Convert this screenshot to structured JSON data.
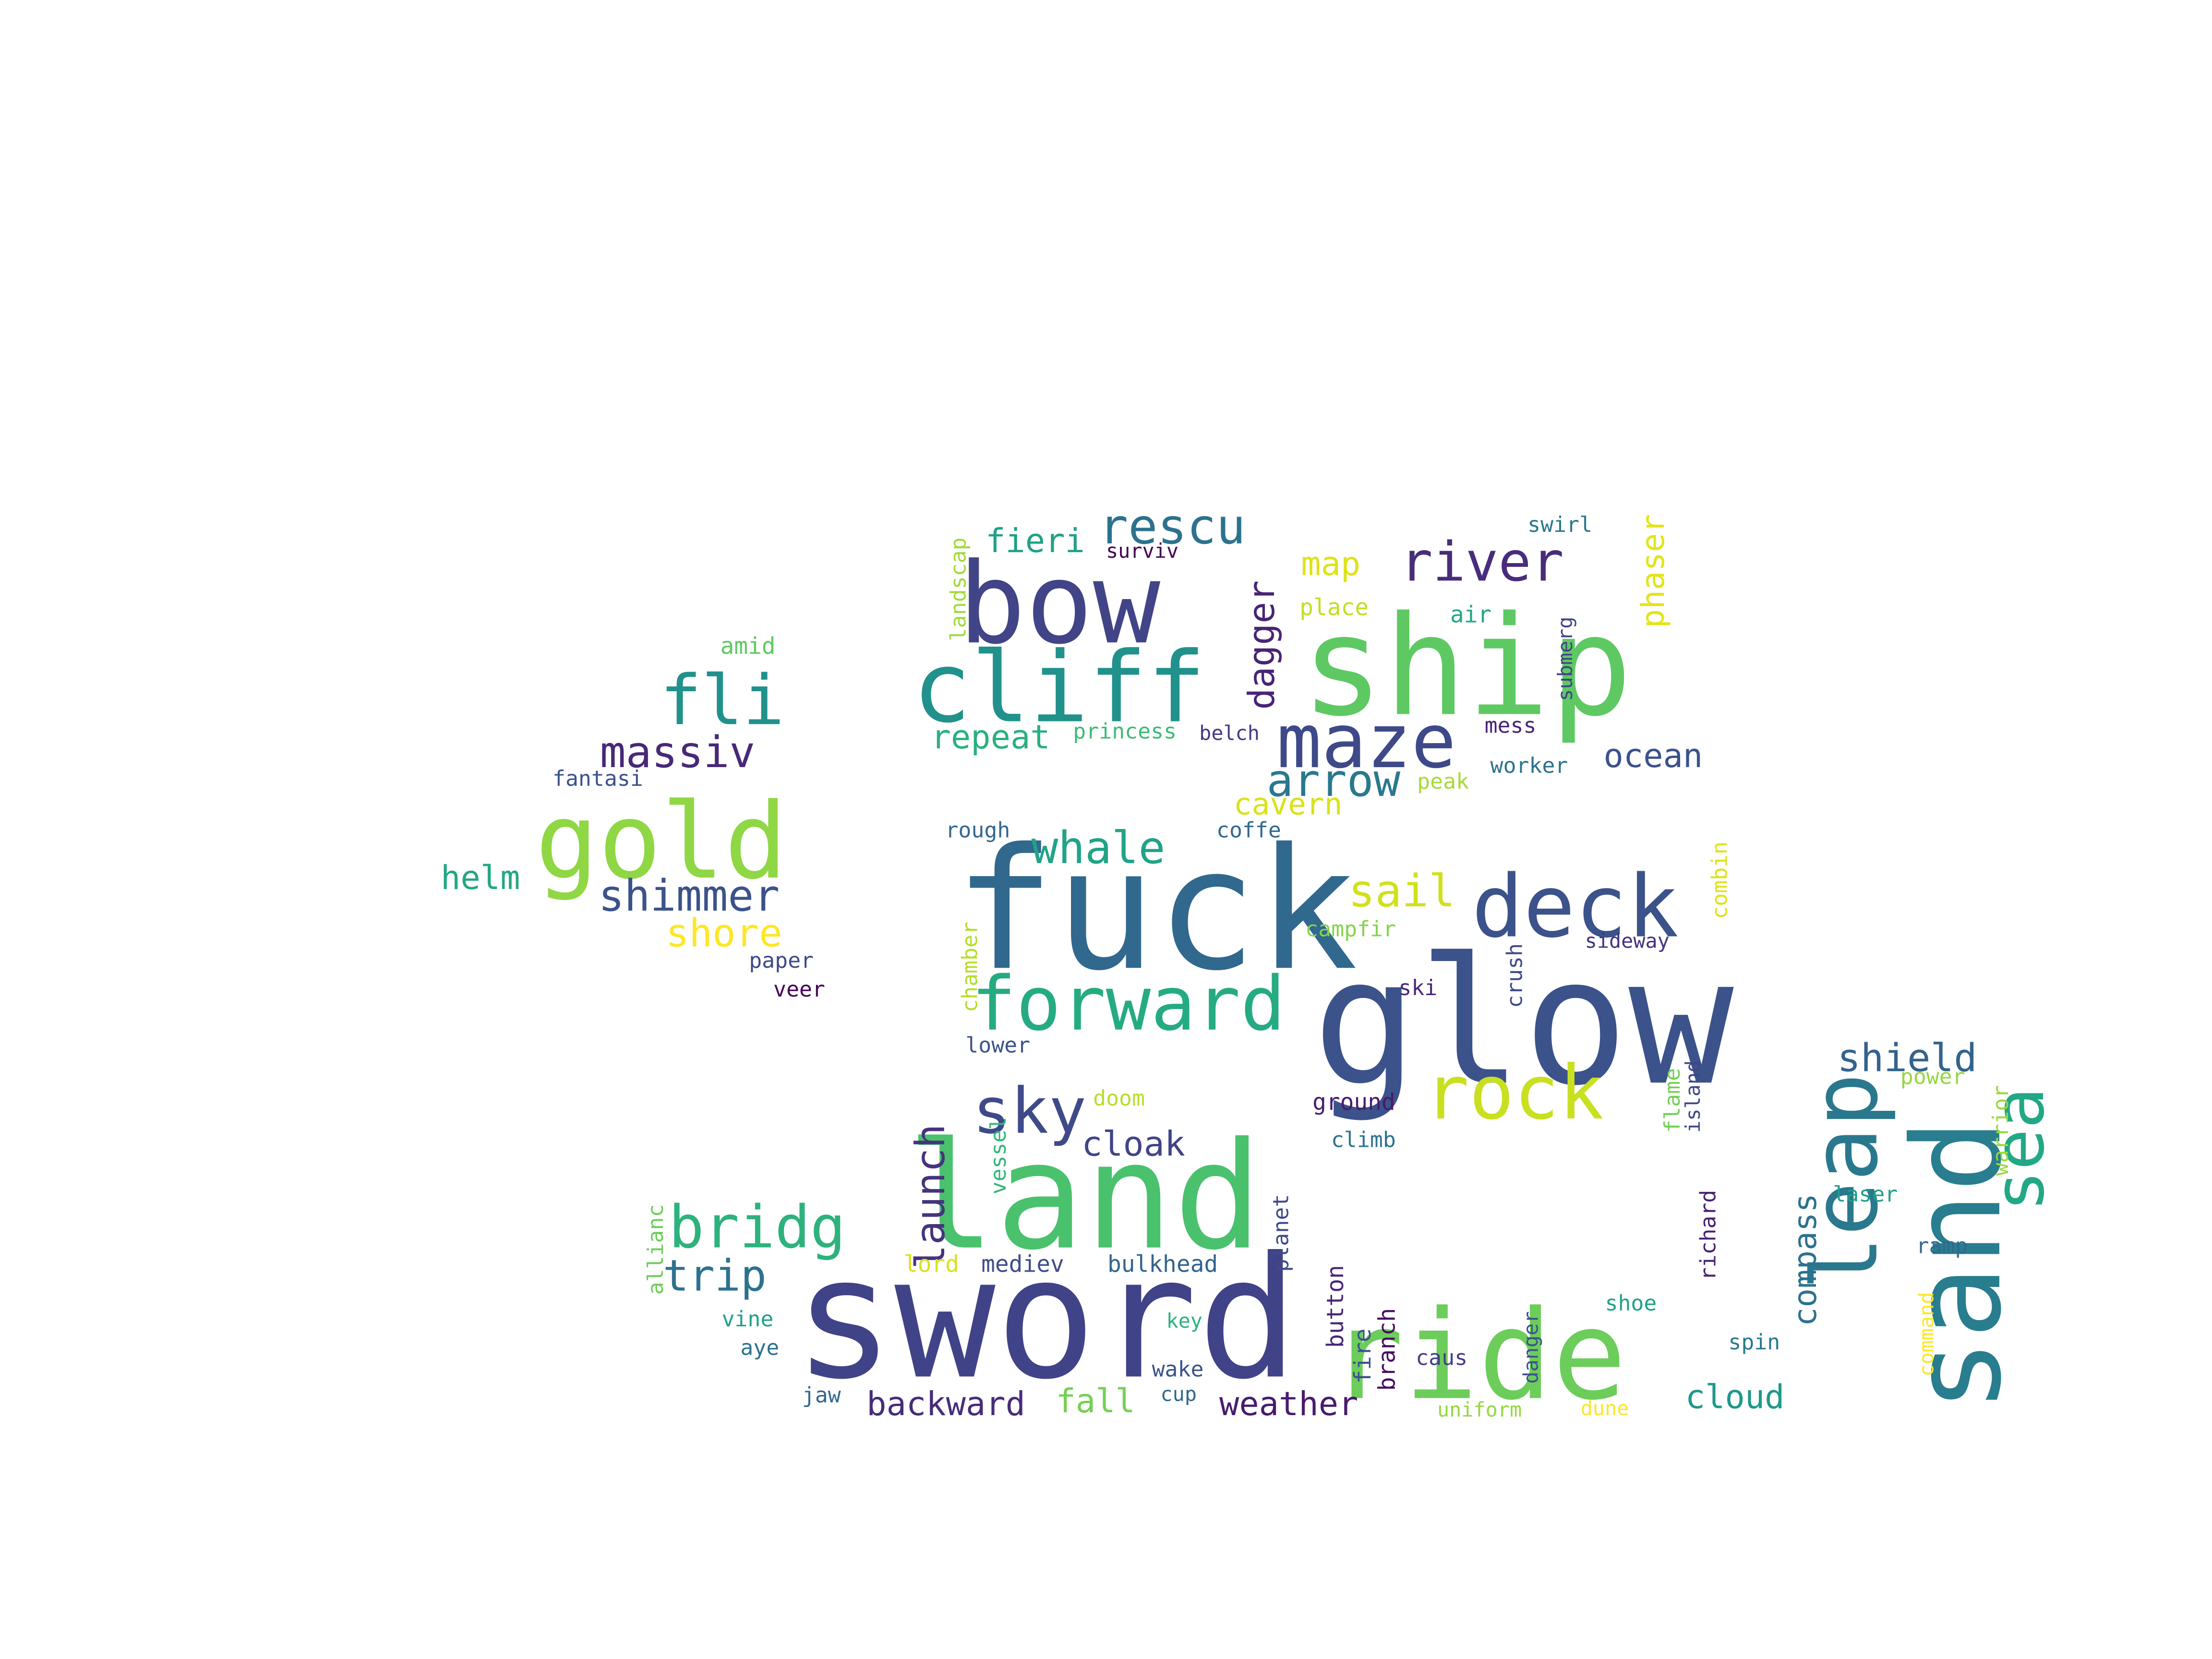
{
  "words": [
    {
      "text": "fuck",
      "color": "#31688e"
    },
    {
      "text": "glow",
      "color": "#3b528b"
    },
    {
      "text": "sword",
      "color": "#404387"
    },
    {
      "text": "land",
      "color": "#4ac16d"
    },
    {
      "text": "ship",
      "color": "#5ec962"
    },
    {
      "text": "bow",
      "color": "#414487"
    },
    {
      "text": "sand",
      "color": "#287d8e"
    },
    {
      "text": "ride",
      "color": "#6ccd5a"
    },
    {
      "text": "gold",
      "color": "#8fd744"
    },
    {
      "text": "cliff",
      "color": "#21918c"
    },
    {
      "text": "deck",
      "color": "#3b528b"
    },
    {
      "text": "forward",
      "color": "#25ab82"
    },
    {
      "text": "maze",
      "color": "#3e4989"
    },
    {
      "text": "leap",
      "color": "#2a788e"
    },
    {
      "text": "rock",
      "color": "#c8e020"
    },
    {
      "text": "sky",
      "color": "#3e4a89"
    },
    {
      "text": "sea",
      "color": "#22a884"
    },
    {
      "text": "bridg",
      "color": "#2db27d"
    },
    {
      "text": "river",
      "color": "#472d7b"
    },
    {
      "text": "fli",
      "color": "#21918c"
    },
    {
      "text": "rescu",
      "color": "#2c728e"
    },
    {
      "text": "whale",
      "color": "#20a386"
    },
    {
      "text": "arrow",
      "color": "#2a788e"
    },
    {
      "text": "massiv",
      "color": "#482878"
    },
    {
      "text": "shimmer",
      "color": "#3b528b"
    },
    {
      "text": "trip",
      "color": "#2c728e"
    },
    {
      "text": "shield",
      "color": "#33638d"
    },
    {
      "text": "sail",
      "color": "#d0e11c"
    },
    {
      "text": "launch",
      "color": "#46337e"
    },
    {
      "text": "fieri",
      "color": "#1fa187"
    },
    {
      "text": "shore",
      "color": "#fde725"
    },
    {
      "text": "cloak",
      "color": "#414487"
    },
    {
      "text": "backward",
      "color": "#472c7a"
    },
    {
      "text": "weather",
      "color": "#481b6d"
    },
    {
      "text": "cloud",
      "color": "#1f988b"
    },
    {
      "text": "ocean",
      "color": "#3b528b"
    },
    {
      "text": "repeat",
      "color": "#2ab07f"
    },
    {
      "text": "dagger",
      "color": "#482475"
    },
    {
      "text": "phaser",
      "color": "#e2e418"
    },
    {
      "text": "helm",
      "color": "#22a884"
    },
    {
      "text": "map",
      "color": "#dde318"
    },
    {
      "text": "fall",
      "color": "#75d054"
    },
    {
      "text": "cavern",
      "color": "#d8e219"
    },
    {
      "text": "compass",
      "color": "#2c728e"
    },
    {
      "text": "lord",
      "color": "#d8e219"
    },
    {
      "text": "mediev",
      "color": "#3e4c8a"
    },
    {
      "text": "bulkhead",
      "color": "#33638d"
    },
    {
      "text": "amid",
      "color": "#5ec962"
    },
    {
      "text": "fantasi",
      "color": "#3b528b"
    },
    {
      "text": "landscap",
      "color": "#a0da39"
    },
    {
      "text": "surviv",
      "color": "#440154"
    },
    {
      "text": "swirl",
      "color": "#2a788e"
    },
    {
      "text": "place",
      "color": "#c2df23"
    },
    {
      "text": "air",
      "color": "#22a884"
    },
    {
      "text": "submerg",
      "color": "#414487"
    },
    {
      "text": "mess",
      "color": "#482475"
    },
    {
      "text": "princess",
      "color": "#3cbb75"
    },
    {
      "text": "belch",
      "color": "#443a83"
    },
    {
      "text": "peak",
      "color": "#a5db36"
    },
    {
      "text": "worker",
      "color": "#2c728e"
    },
    {
      "text": "coffe",
      "color": "#31688e"
    },
    {
      "text": "rough",
      "color": "#31688e"
    },
    {
      "text": "combin",
      "color": "#dde318"
    },
    {
      "text": "campfir",
      "color": "#84d44b"
    },
    {
      "text": "sideway",
      "color": "#46327e"
    },
    {
      "text": "paper",
      "color": "#3e4a89"
    },
    {
      "text": "veer",
      "color": "#440154"
    },
    {
      "text": "chamber",
      "color": "#b5de2b"
    },
    {
      "text": "crush",
      "color": "#3e4989"
    },
    {
      "text": "ski",
      "color": "#482878"
    },
    {
      "text": "lower",
      "color": "#3b528b"
    },
    {
      "text": "doom",
      "color": "#b5de2b"
    },
    {
      "text": "ground",
      "color": "#481a6c"
    },
    {
      "text": "climb",
      "color": "#2c728e"
    },
    {
      "text": "flame",
      "color": "#73d056"
    },
    {
      "text": "island",
      "color": "#404688"
    },
    {
      "text": "power",
      "color": "#95d840"
    },
    {
      "text": "warrior",
      "color": "#9bd93c"
    },
    {
      "text": "laser",
      "color": "#1f9e89"
    },
    {
      "text": "ramp",
      "color": "#31688e"
    },
    {
      "text": "richard",
      "color": "#481f70"
    },
    {
      "text": "allianc",
      "color": "#6ece58"
    },
    {
      "text": "vessel",
      "color": "#35b779"
    },
    {
      "text": "planet",
      "color": "#3e4989"
    },
    {
      "text": "button",
      "color": "#482677"
    },
    {
      "text": "fire",
      "color": "#3b528b"
    },
    {
      "text": "branch",
      "color": "#460b5e"
    },
    {
      "text": "danger",
      "color": "#3b528b"
    },
    {
      "text": "command",
      "color": "#fde725"
    },
    {
      "text": "vine",
      "color": "#1fa187"
    },
    {
      "text": "aye",
      "color": "#2c728e"
    },
    {
      "text": "key",
      "color": "#2db27d"
    },
    {
      "text": "wake",
      "color": "#3b528b"
    },
    {
      "text": "caus",
      "color": "#433e85"
    },
    {
      "text": "shoe",
      "color": "#1fa187"
    },
    {
      "text": "spin",
      "color": "#2a788e"
    },
    {
      "text": "jaw",
      "color": "#31688e"
    },
    {
      "text": "cup",
      "color": "#31688e"
    },
    {
      "text": "uniform",
      "color": "#95d840"
    },
    {
      "text": "dune",
      "color": "#fde725"
    }
  ]
}
